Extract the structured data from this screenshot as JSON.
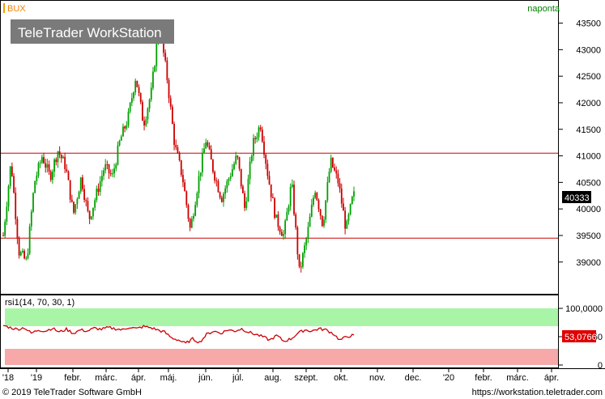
{
  "header": {
    "symbol": "BUX",
    "interval": "naponta",
    "watermark": "TeleTrader WorkStation"
  },
  "footer": {
    "copyright": "© 2019 TeleTrader Software GmbH",
    "url": "https://workstation.teletrader.com"
  },
  "colors": {
    "up": "#00a000",
    "down": "#cc0000",
    "resistance_line": "#cc0000",
    "support_line": "#cc0000",
    "rsi_line": "#cc0000",
    "overbought_zone": "#a8f5a8",
    "oversold_zone": "#f7a8a8",
    "price_badge": "#000000",
    "rsi_badge": "#e00000"
  },
  "chart_data": [
    {
      "type": "candlestick",
      "series_name": "BUX",
      "y_ticks": [
        39000,
        39500,
        40000,
        40500,
        41000,
        41500,
        42000,
        42500,
        43000,
        43500
      ],
      "ylim": [
        38600,
        43600
      ],
      "horizontal_lines": [
        41050,
        39450
      ],
      "last_value_label": "40333",
      "x_tick_labels": [
        "'18",
        "'19",
        "febr.",
        "márc.",
        "ápr.",
        "máj.",
        "jún.",
        "júl.",
        "aug.",
        "szept.",
        "okt.",
        "nov.",
        "dec.",
        "'20",
        "febr.",
        "márc.",
        "ápr."
      ],
      "close_path": [
        39500,
        40900,
        39200,
        39000,
        40500,
        41000,
        40600,
        41100,
        40800,
        39900,
        40600,
        39800,
        40300,
        40800,
        40600,
        41300,
        41700,
        42500,
        41600,
        42200,
        43500,
        42500,
        41200,
        40600,
        39600,
        40500,
        41300,
        40700,
        40200,
        40600,
        41000,
        40000,
        41200,
        41600,
        40600,
        39800,
        39500,
        40500,
        38800,
        39500,
        40400,
        39700,
        40900,
        40500,
        39600,
        40333
      ]
    },
    {
      "type": "line",
      "series_name": "rsi1(14, 70, 30, 1)",
      "y_tick_labels": [
        "100,0000",
        "50",
        "0"
      ],
      "ylim": [
        0,
        100
      ],
      "overbought": 70,
      "oversold": 30,
      "last_value_label": "53,0766",
      "values": [
        70,
        66,
        63,
        66,
        56,
        62,
        60,
        65,
        58,
        63,
        56,
        62,
        60,
        65,
        63,
        66,
        64,
        62,
        67,
        64,
        68,
        66,
        62,
        58,
        48,
        44,
        38,
        46,
        40,
        54,
        60,
        56,
        62,
        60,
        64,
        58,
        54,
        50,
        44,
        52,
        42,
        46,
        56,
        62,
        60,
        64,
        62,
        56,
        44,
        50,
        53
      ]
    }
  ]
}
